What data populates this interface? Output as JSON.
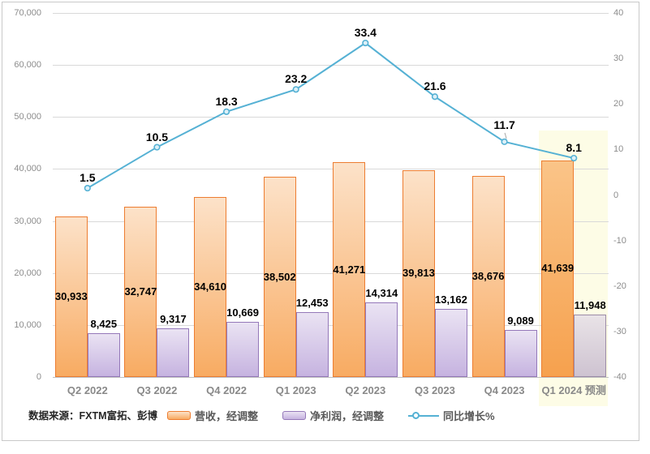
{
  "source_note": "数据来源：FXTM富拓、彭博",
  "legend": {
    "items": [
      {
        "label": "营收，经调整",
        "swatch": "orange-bar"
      },
      {
        "label": "净利润，经调整",
        "swatch": "purple-bar"
      },
      {
        "label": "同比增长%",
        "swatch": "blue-line"
      }
    ]
  },
  "colors": {
    "revenue_border": "#ED7D31",
    "revenue_fill_top": "#FCE2C9",
    "revenue_fill_bottom": "#F8AB62",
    "revenue_forecast_fill_top": "#FAC488",
    "revenue_forecast_fill_bottom": "#F6A14E",
    "profit_border": "#9478B9",
    "profit_fill_top": "#EAE3F3",
    "profit_fill_bottom": "#C6B3E0",
    "profit_forecast_border": "#9C8BA7",
    "profit_forecast_fill_top": "#E9E3E7",
    "profit_forecast_fill_bottom": "#CEC3D1",
    "line": "#55B1D4",
    "marker_fill": "#DDF0F8",
    "forecast_highlight": "#FDFCE6",
    "gridline": "#D9D9D9",
    "axis_line": "#BFBFBF",
    "axis_text": "#8C8C8C",
    "xlabel_text": "#898989",
    "legend_text": "#595959",
    "frame_border": "#C9C9C9"
  },
  "chart_data": {
    "type": "combo",
    "title": "",
    "categories": [
      "Q2 2022",
      "Q3 2022",
      "Q4 2022",
      "Q1 2023",
      "Q2 2023",
      "Q3 2023",
      "Q4 2023",
      "Q1 2024 预测"
    ],
    "series": [
      {
        "name": "营收，经调整",
        "type": "bar",
        "axis": "left",
        "values": [
          30933,
          32747,
          34610,
          38502,
          41271,
          39813,
          38676,
          41639
        ],
        "labels": [
          "30,933",
          "32,747",
          "34,610",
          "38,502",
          "41,271",
          "39,813",
          "38,676",
          "41,639"
        ]
      },
      {
        "name": "净利润，经调整",
        "type": "bar",
        "axis": "left",
        "values": [
          8425,
          9317,
          10669,
          12453,
          14314,
          13162,
          9089,
          11948
        ],
        "labels": [
          "8,425",
          "9,317",
          "10,669",
          "12,453",
          "14,314",
          "13,162",
          "9,089",
          "11,948"
        ]
      },
      {
        "name": "同比增长%",
        "type": "line",
        "axis": "right",
        "values": [
          1.5,
          10.5,
          18.3,
          23.2,
          33.4,
          21.6,
          11.7,
          8.1
        ],
        "labels": [
          "1.5",
          "10.5",
          "18.3",
          "23.2",
          "33.4",
          "21.6",
          "11.7",
          "8.1"
        ]
      }
    ],
    "left_axis": {
      "min": 0,
      "max": 70000,
      "step": 10000,
      "ticks": [
        "70,000",
        "60,000",
        "50,000",
        "40,000",
        "30,000",
        "20,000",
        "10,000",
        "0"
      ]
    },
    "right_axis": {
      "min": -40,
      "max": 40,
      "step": 10,
      "ticks": [
        "40",
        "30",
        "20",
        "10",
        "0",
        "-10",
        "-20",
        "-30",
        "-40"
      ]
    },
    "grid": true,
    "legend_position": "bottom",
    "forecast_index": 7,
    "label_offsets": [
      0,
      0,
      0,
      0,
      0,
      0,
      -8,
      0
    ],
    "leader_index": 6
  }
}
